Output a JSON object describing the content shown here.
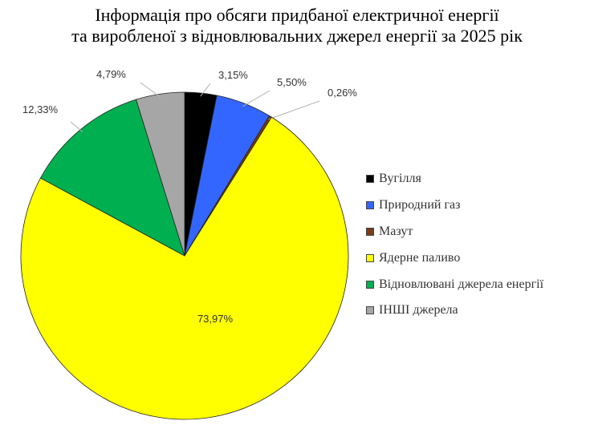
{
  "title_line1": "Інформація про обсяги придбаної електричної енергії",
  "title_line2": "та виробленої з відновлювальних джерел енергії за 2025 рік",
  "chart_data": {
    "type": "pie",
    "title": "Інформація про обсяги придбаної електричної енергії та виробленої з відновлювальних джерел енергії за 2025 рік",
    "legend_position": "right",
    "series": [
      {
        "name": "Вугілля",
        "value": 3.15,
        "label": "3,15%",
        "color": "#000000"
      },
      {
        "name": "Природний газ",
        "value": 5.5,
        "label": "5,50%",
        "color": "#3366ff"
      },
      {
        "name": "Мазут",
        "value": 0.26,
        "label": "0,26%",
        "color": "#7a3a14"
      },
      {
        "name": "Ядерне паливо",
        "value": 73.97,
        "label": "73,97%",
        "color": "#ffff00"
      },
      {
        "name": "Відновлювані джерела енергії",
        "value": 12.33,
        "label": "12,33%",
        "color": "#00b050"
      },
      {
        "name": "ІНШІ джерела",
        "value": 4.79,
        "label": "4,79%",
        "color": "#a6a6a6"
      }
    ]
  }
}
